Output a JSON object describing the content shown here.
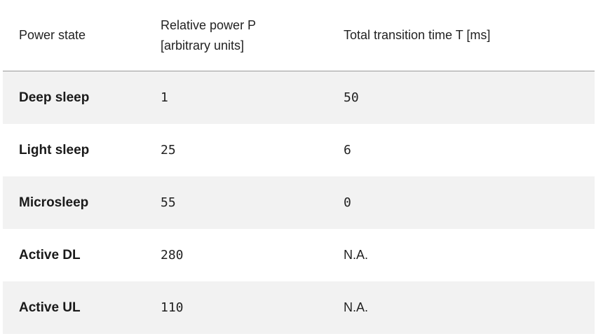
{
  "header": {
    "col1": "Power state",
    "col2_line1": "Relative power P",
    "col2_line2": "[arbitrary units]",
    "col3": "Total transition time T [ms]"
  },
  "rows": [
    {
      "state": "Deep sleep",
      "power": "1",
      "time": "50"
    },
    {
      "state": "Light sleep",
      "power": "25",
      "time": "6"
    },
    {
      "state": "Microsleep",
      "power": "55",
      "time": "0"
    },
    {
      "state": "Active DL",
      "power": "280",
      "time": "N.A."
    },
    {
      "state": "Active UL",
      "power": "110",
      "time": "N.A."
    }
  ],
  "colors": {
    "shaded_row": "#f2f2f2",
    "header_border": "#9a9a9a",
    "text": "#1a1a1a"
  }
}
